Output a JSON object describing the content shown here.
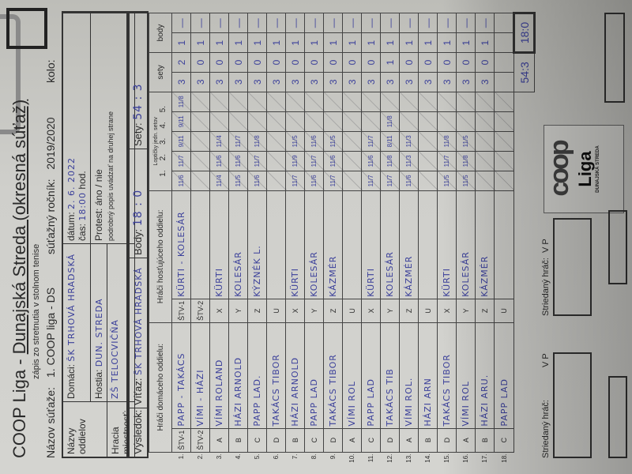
{
  "header": {
    "title_prefix": "COOP Liga - ",
    "title_underlined": "Dunajská Streda (okresná súťaž)",
    "subtitle": "zápis zo stretnutia v stolnom tenise",
    "competition_label": "Názov súťaže:",
    "competition": "1. COOP liga - DS",
    "season_label": "súťažný ročník:",
    "season": "2019/2020",
    "round_label": "kolo:",
    "round": ""
  },
  "info": {
    "clubs_label": "Názvy oddielov",
    "home_label": "Domáci:",
    "home": "ŠK TRHOVÁ HRADSKÁ",
    "guest_label": "Hostia:",
    "guest": "DUN. STREDA",
    "venue_label": "Hracia miestnosť:",
    "venue": "ZŠ TELOCVIČŇA",
    "date_label": "dátum:",
    "date": "2. 6. 2022",
    "time_label": "čas:",
    "time": "18:00",
    "hour_label": "hod.",
    "protest_label": "Protest:",
    "protest_options": "áno / nie",
    "protest_note": "podrobný popis uvádzať na druhej strane"
  },
  "result": {
    "label": "Výsledok:",
    "winner_label": "Víťaz:",
    "winner": "ŠK TRHOVÁ HRADSKÁ",
    "points_label": "Body:",
    "points": "18 : 0",
    "sets_label": "Sety:",
    "sets": "54 : 3"
  },
  "table": {
    "home_header": "Hráči domáceho oddielu:",
    "away_header": "Hráči hosťujúceho oddielu:",
    "sets_header": "Loptičky jedn. setov",
    "set_nums": [
      "1.",
      "2.",
      "3.",
      "4.",
      "5."
    ],
    "sety_header": "sety",
    "body_header": "body",
    "rows": [
      {
        "n": "1.",
        "hl": "ŠTV-1",
        "home": "PAPP - TAKÁCS",
        "al": "ŠTV-1",
        "away": "KÜRTI - KOLESÁR",
        "s": [
          "11/6",
          "11/7",
          "9/11",
          "9/11",
          "11/8"
        ],
        "sw": "3",
        "sl": "2",
        "bw": "1",
        "bl": "—"
      },
      {
        "n": "2.",
        "hl": "ŠTV-2",
        "home": "VÍMI - HÁZI",
        "al": "ŠTV-2",
        "away": "",
        "s": [
          "",
          "",
          "",
          "",
          ""
        ],
        "sw": "3",
        "sl": "0",
        "bw": "1",
        "bl": "—"
      },
      {
        "n": "3.",
        "hl": "A",
        "home": "VÍMI ROLAND",
        "al": "X",
        "away": "KÜRTI",
        "s": [
          "11/4",
          "11/6",
          "11/4",
          "",
          ""
        ],
        "sw": "3",
        "sl": "0",
        "bw": "1",
        "bl": "—"
      },
      {
        "n": "4.",
        "hl": "B",
        "home": "HÁZI ARNOLD",
        "al": "Y",
        "away": "KOLESÁR",
        "s": [
          "11/5",
          "11/6",
          "11/7",
          "",
          ""
        ],
        "sw": "3",
        "sl": "0",
        "bw": "1",
        "bl": "—"
      },
      {
        "n": "5.",
        "hl": "C",
        "home": "PAPP LAD.",
        "al": "Z",
        "away": "KÝZNÉK L.",
        "s": [
          "11/6",
          "11/7",
          "11/8",
          "",
          ""
        ],
        "sw": "3",
        "sl": "0",
        "bw": "1",
        "bl": "—"
      },
      {
        "n": "6.",
        "hl": "D",
        "home": "TAKÁCS TIBOR",
        "al": "U",
        "away": "",
        "s": [
          "",
          "",
          "",
          "",
          ""
        ],
        "sw": "3",
        "sl": "0",
        "bw": "1",
        "bl": "—"
      },
      {
        "n": "7.",
        "hl": "B",
        "home": "HÁZI ARNOLD",
        "al": "X",
        "away": "KÜRTI",
        "s": [
          "11/7",
          "11/9",
          "11/5",
          "",
          ""
        ],
        "sw": "3",
        "sl": "0",
        "bw": "1",
        "bl": "—"
      },
      {
        "n": "8.",
        "hl": "C",
        "home": "PAPP LAD",
        "al": "Y",
        "away": "KOLESÁR",
        "s": [
          "11/6",
          "11/7",
          "11/6",
          "",
          ""
        ],
        "sw": "3",
        "sl": "0",
        "bw": "1",
        "bl": "—"
      },
      {
        "n": "9.",
        "hl": "D",
        "home": "TAKÁCS TIBOR",
        "al": "Z",
        "away": "KÁZMÉR",
        "s": [
          "11/7",
          "11/6",
          "11/5",
          "",
          ""
        ],
        "sw": "3",
        "sl": "0",
        "bw": "1",
        "bl": "—"
      },
      {
        "n": "10.",
        "hl": "A",
        "home": "VÍMI ROL",
        "al": "U",
        "away": "",
        "s": [
          "",
          "",
          "",
          "",
          ""
        ],
        "sw": "3",
        "sl": "0",
        "bw": "1",
        "bl": "—"
      },
      {
        "n": "11.",
        "hl": "C",
        "home": "PAPP LAD",
        "al": "X",
        "away": "KÜRTI",
        "s": [
          "11/7",
          "11/6",
          "11/7",
          "",
          ""
        ],
        "sw": "3",
        "sl": "0",
        "bw": "1",
        "bl": "—"
      },
      {
        "n": "12.",
        "hl": "D",
        "home": "TAKÁCS TIB",
        "al": "Y",
        "away": "KOLESÁR",
        "s": [
          "11/7",
          "11/8",
          "8/11",
          "11/8",
          ""
        ],
        "sw": "3",
        "sl": "1",
        "bw": "1",
        "bl": "—"
      },
      {
        "n": "13.",
        "hl": "A",
        "home": "VÍMI ROL.",
        "al": "Z",
        "away": "KÁZMÉR",
        "s": [
          "11/6",
          "11/3",
          "11/3",
          "",
          ""
        ],
        "sw": "3",
        "sl": "0",
        "bw": "1",
        "bl": "—"
      },
      {
        "n": "14.",
        "hl": "B",
        "home": "HÁZI ARN",
        "al": "U",
        "away": "",
        "s": [
          "",
          "",
          "",
          "",
          ""
        ],
        "sw": "3",
        "sl": "0",
        "bw": "1",
        "bl": "—"
      },
      {
        "n": "15.",
        "hl": "D",
        "home": "TAKÁCS TIBOR",
        "al": "X",
        "away": "KÜRTI",
        "s": [
          "11/5",
          "11/7",
          "11/8",
          "",
          ""
        ],
        "sw": "3",
        "sl": "0",
        "bw": "1",
        "bl": "—"
      },
      {
        "n": "16.",
        "hl": "A",
        "home": "VÍMI ROL",
        "al": "Y",
        "away": "KOLESÁR",
        "s": [
          "11/5",
          "11/8",
          "11/5",
          "",
          ""
        ],
        "sw": "3",
        "sl": "0",
        "bw": "1",
        "bl": "—"
      },
      {
        "n": "17.",
        "hl": "B",
        "home": "HÁZI ARU.",
        "al": "Z",
        "away": "KÁZMÉR",
        "s": [
          "",
          "",
          "",
          "",
          ""
        ],
        "sw": "3",
        "sl": "0",
        "bw": "1",
        "bl": "—"
      },
      {
        "n": "18.",
        "hl": "C",
        "home": "PAPP LAD",
        "al": "U",
        "away": "",
        "s": [
          "",
          "",
          "",
          "",
          ""
        ],
        "sw": "",
        "sl": "",
        "bw": "",
        "bl": ""
      }
    ],
    "total_sets": "54:3",
    "total_points": "18:0"
  },
  "substitutes": {
    "label": "Striedaný hráč:",
    "vp": "V  P"
  },
  "logo": {
    "brand": "COOP",
    "name": "Liga",
    "region": "DUNAJSKÁ STREDA"
  },
  "colors": {
    "ink": "#3a3f9a",
    "paper": "#d0d0cc"
  }
}
